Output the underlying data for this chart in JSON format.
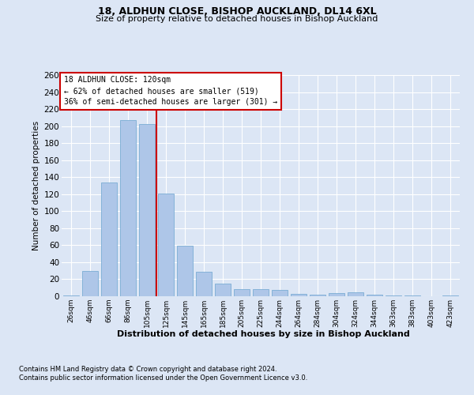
{
  "title1": "18, ALDHUN CLOSE, BISHOP AUCKLAND, DL14 6XL",
  "title2": "Size of property relative to detached houses in Bishop Auckland",
  "xlabel": "Distribution of detached houses by size in Bishop Auckland",
  "ylabel": "Number of detached properties",
  "footnote1": "Contains HM Land Registry data © Crown copyright and database right 2024.",
  "footnote2": "Contains public sector information licensed under the Open Government Licence v3.0.",
  "annotation_line1": "18 ALDHUN CLOSE: 120sqm",
  "annotation_line2": "← 62% of detached houses are smaller (519)",
  "annotation_line3": "36% of semi-detached houses are larger (301) →",
  "bar_labels": [
    "26sqm",
    "46sqm",
    "66sqm",
    "86sqm",
    "105sqm",
    "125sqm",
    "145sqm",
    "165sqm",
    "185sqm",
    "205sqm",
    "225sqm",
    "244sqm",
    "264sqm",
    "284sqm",
    "304sqm",
    "324sqm",
    "344sqm",
    "363sqm",
    "383sqm",
    "403sqm",
    "423sqm"
  ],
  "bar_values": [
    1,
    30,
    134,
    207,
    202,
    121,
    59,
    29,
    15,
    8,
    8,
    7,
    3,
    2,
    4,
    5,
    2,
    1,
    1,
    0,
    1
  ],
  "bar_color": "#aec6e8",
  "bar_edgecolor": "#7badd4",
  "vline_color": "#cc0000",
  "annotation_box_edgecolor": "#cc0000",
  "annotation_box_facecolor": "white",
  "bg_color": "#dce6f5",
  "ylim": [
    0,
    260
  ],
  "yticks": [
    0,
    20,
    40,
    60,
    80,
    100,
    120,
    140,
    160,
    180,
    200,
    220,
    240,
    260
  ]
}
